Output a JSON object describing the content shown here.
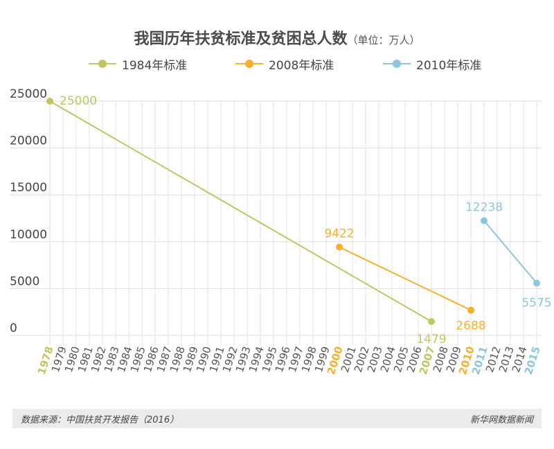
{
  "title": "我国历年扶贫标准及贫困总人数",
  "unit": "（单位：万人）",
  "legend": [
    {
      "label": "1984年标准",
      "color": "#c2c562"
    },
    {
      "label": "2008年标准",
      "color": "#f6b02c"
    },
    {
      "label": "2010年标准",
      "color": "#8fc5dc"
    }
  ],
  "footer": {
    "source": "数据来源：中国扶贫开发报告（2016）",
    "brand": "新华网数据新闻"
  },
  "chart_data": {
    "type": "line",
    "categories": [
      "1978",
      "1979",
      "1980",
      "1981",
      "1982",
      "1983",
      "1984",
      "1985",
      "1986",
      "1987",
      "1988",
      "1989",
      "1990",
      "1991",
      "1992",
      "1993",
      "1994",
      "1995",
      "1996",
      "1997",
      "1998",
      "1999",
      "2000",
      "2001",
      "2002",
      "2003",
      "2004",
      "2005",
      "2006",
      "2007",
      "2008",
      "2009",
      "2010",
      "2011",
      "2012",
      "2013",
      "2014",
      "2015"
    ],
    "highlight_ticks": {
      "1978": "#c2c562",
      "2007": "#c2c562",
      "2000": "#f6b02c",
      "2010": "#f6b02c",
      "2011": "#8fc5dc",
      "2015": "#8fc5dc"
    },
    "y_ticks": [
      0,
      5000,
      10000,
      15000,
      20000,
      25000
    ],
    "ylim": [
      0,
      25000
    ],
    "grid": true,
    "legend_position": "top",
    "series": [
      {
        "name": "1984年标准",
        "color": "#c2c562",
        "points": [
          {
            "x": "1978",
            "y": 25000
          },
          {
            "x": "2007",
            "y": 1479
          }
        ]
      },
      {
        "name": "2008年标准",
        "color": "#f6b02c",
        "points": [
          {
            "x": "2000",
            "y": 9422
          },
          {
            "x": "2010",
            "y": 2688
          }
        ]
      },
      {
        "name": "2010年标准",
        "color": "#8fc5dc",
        "points": [
          {
            "x": "2011",
            "y": 12238
          },
          {
            "x": "2015",
            "y": 5575
          }
        ]
      }
    ]
  }
}
